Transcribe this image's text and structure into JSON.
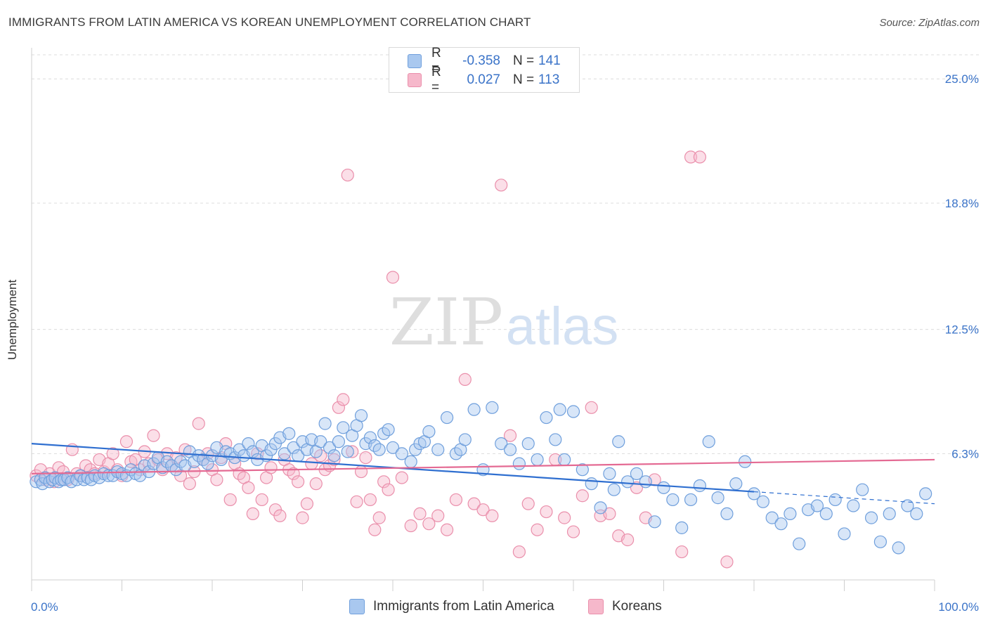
{
  "title": "IMMIGRANTS FROM LATIN AMERICA VS KOREAN UNEMPLOYMENT CORRELATION CHART",
  "source": "Source: ZipAtlas.com",
  "watermark": {
    "zip": "ZIP",
    "atlas": "atlas"
  },
  "colors": {
    "blue_fill": "#a9c8ef",
    "blue_stroke": "#6f9fdc",
    "blue_line": "#2f6fd0",
    "pink_fill": "#f6b8cb",
    "pink_stroke": "#ea8fab",
    "pink_line": "#e46a93",
    "axis_text": "#3a73c8",
    "grid": "#dcdcdc"
  },
  "legend_top": [
    {
      "r_label": "R =",
      "r_value": "-0.358",
      "n_label": "N =",
      "n_value": "141",
      "swatch": "#a9c8ef",
      "swatch_border": "#6f9fdc"
    },
    {
      "r_label": "R =",
      "r_value": "0.027",
      "n_label": "N =",
      "n_value": "113",
      "swatch": "#f6b8cb",
      "swatch_border": "#ea8fab"
    }
  ],
  "legend_bottom": [
    {
      "label": "Immigrants from Latin America",
      "swatch": "#a9c8ef",
      "swatch_border": "#6f9fdc"
    },
    {
      "label": "Koreans",
      "swatch": "#f6b8cb",
      "swatch_border": "#ea8fab"
    }
  ],
  "chart_data": {
    "type": "scatter",
    "title": "IMMIGRANTS FROM LATIN AMERICA VS KOREAN UNEMPLOYMENT CORRELATION CHART",
    "xlabel": "",
    "ylabel": "Unemployment",
    "xlim": [
      0,
      100
    ],
    "ylim": [
      0,
      26.2
    ],
    "x_tick_labels": [
      "0.0%",
      "100.0%"
    ],
    "y_ticks": [
      6.3,
      12.5,
      18.8,
      25.0
    ],
    "y_tick_labels": [
      "6.3%",
      "12.5%",
      "18.8%",
      "25.0%"
    ],
    "grid": "horizontal dashed",
    "legend_position": "top-center",
    "series": [
      {
        "name": "Immigrants from Latin America",
        "r": -0.358,
        "n": 141,
        "trend": {
          "x0": 0,
          "y0": 6.8,
          "x1": 80,
          "y1": 4.4,
          "dashed_to_x": 100,
          "dashed_to_y": 3.8
        },
        "points": [
          [
            0.5,
            4.9
          ],
          [
            1,
            5.0
          ],
          [
            1.2,
            4.8
          ],
          [
            1.5,
            5.1
          ],
          [
            2,
            4.9
          ],
          [
            2.3,
            5.0
          ],
          [
            2.6,
            5.1
          ],
          [
            3,
            4.9
          ],
          [
            3.3,
            5.0
          ],
          [
            3.6,
            5.0
          ],
          [
            4,
            5.1
          ],
          [
            4.4,
            4.9
          ],
          [
            5,
            5.0
          ],
          [
            5.4,
            5.2
          ],
          [
            5.8,
            5.0
          ],
          [
            6.2,
            5.1
          ],
          [
            6.6,
            5.0
          ],
          [
            7,
            5.2
          ],
          [
            7.5,
            5.1
          ],
          [
            8,
            5.3
          ],
          [
            8.5,
            5.2
          ],
          [
            9,
            5.2
          ],
          [
            9.5,
            5.4
          ],
          [
            10,
            5.3
          ],
          [
            10.5,
            5.2
          ],
          [
            11,
            5.5
          ],
          [
            11.5,
            5.3
          ],
          [
            12,
            5.2
          ],
          [
            12.5,
            5.7
          ],
          [
            13,
            5.4
          ],
          [
            13.5,
            5.8
          ],
          [
            14,
            6.1
          ],
          [
            14.5,
            5.6
          ],
          [
            15,
            5.9
          ],
          [
            15.5,
            5.7
          ],
          [
            16,
            5.5
          ],
          [
            16.5,
            5.9
          ],
          [
            17,
            5.7
          ],
          [
            17.5,
            6.4
          ],
          [
            18,
            5.9
          ],
          [
            18.5,
            6.2
          ],
          [
            19,
            6.0
          ],
          [
            19.5,
            5.8
          ],
          [
            20,
            6.2
          ],
          [
            20.5,
            6.6
          ],
          [
            21,
            6.0
          ],
          [
            21.5,
            6.4
          ],
          [
            22,
            6.3
          ],
          [
            22.5,
            6.1
          ],
          [
            23,
            6.5
          ],
          [
            23.5,
            6.2
          ],
          [
            24,
            6.8
          ],
          [
            24.5,
            6.4
          ],
          [
            25,
            6.0
          ],
          [
            25.5,
            6.7
          ],
          [
            26,
            6.2
          ],
          [
            26.5,
            6.5
          ],
          [
            27,
            6.8
          ],
          [
            27.5,
            7.1
          ],
          [
            28,
            6.3
          ],
          [
            28.5,
            7.3
          ],
          [
            29,
            6.6
          ],
          [
            29.5,
            6.2
          ],
          [
            30,
            6.9
          ],
          [
            30.5,
            6.5
          ],
          [
            31,
            7.0
          ],
          [
            31.5,
            6.4
          ],
          [
            32,
            6.9
          ],
          [
            32.5,
            7.8
          ],
          [
            33,
            6.6
          ],
          [
            33.5,
            6.2
          ],
          [
            34,
            6.9
          ],
          [
            34.5,
            7.6
          ],
          [
            35,
            6.4
          ],
          [
            35.5,
            7.2
          ],
          [
            36,
            7.7
          ],
          [
            36.5,
            8.2
          ],
          [
            37,
            6.8
          ],
          [
            37.5,
            7.1
          ],
          [
            38,
            6.7
          ],
          [
            38.5,
            6.5
          ],
          [
            39,
            7.3
          ],
          [
            39.5,
            7.5
          ],
          [
            40,
            6.6
          ],
          [
            41,
            6.3
          ],
          [
            42,
            5.9
          ],
          [
            42.5,
            6.5
          ],
          [
            43,
            6.8
          ],
          [
            43.5,
            6.9
          ],
          [
            44,
            7.4
          ],
          [
            45,
            6.5
          ],
          [
            46,
            8.1
          ],
          [
            47,
            6.3
          ],
          [
            47.5,
            6.5
          ],
          [
            48,
            7.0
          ],
          [
            49,
            8.5
          ],
          [
            50,
            5.5
          ],
          [
            51,
            8.6
          ],
          [
            52,
            6.8
          ],
          [
            53,
            6.5
          ],
          [
            54,
            5.8
          ],
          [
            55,
            6.8
          ],
          [
            56,
            6.0
          ],
          [
            57,
            8.1
          ],
          [
            58,
            7.0
          ],
          [
            58.5,
            8.5
          ],
          [
            59,
            6.0
          ],
          [
            60,
            8.4
          ],
          [
            61,
            5.5
          ],
          [
            62,
            4.8
          ],
          [
            63,
            3.6
          ],
          [
            64,
            5.3
          ],
          [
            64.5,
            4.5
          ],
          [
            65,
            6.9
          ],
          [
            66,
            4.9
          ],
          [
            67,
            5.3
          ],
          [
            68,
            4.9
          ],
          [
            69,
            2.9
          ],
          [
            70,
            4.6
          ],
          [
            71,
            4.0
          ],
          [
            72,
            2.6
          ],
          [
            73,
            4.0
          ],
          [
            74,
            4.7
          ],
          [
            75,
            6.9
          ],
          [
            76,
            4.1
          ],
          [
            77,
            3.3
          ],
          [
            78,
            4.8
          ],
          [
            79,
            5.9
          ],
          [
            80,
            4.3
          ],
          [
            81,
            3.9
          ],
          [
            82,
            3.1
          ],
          [
            83,
            2.8
          ],
          [
            84,
            3.3
          ],
          [
            85,
            1.8
          ],
          [
            86,
            3.5
          ],
          [
            87,
            3.7
          ],
          [
            88,
            3.3
          ],
          [
            89,
            4.0
          ],
          [
            90,
            2.3
          ],
          [
            91,
            3.7
          ],
          [
            92,
            4.5
          ],
          [
            93,
            3.1
          ],
          [
            94,
            1.9
          ],
          [
            95,
            3.3
          ],
          [
            96,
            1.6
          ],
          [
            97,
            3.7
          ],
          [
            98,
            3.3
          ],
          [
            99,
            4.3
          ]
        ]
      },
      {
        "name": "Koreans",
        "r": 0.027,
        "n": 113,
        "trend": {
          "x0": 0,
          "y0": 5.3,
          "x1": 100,
          "y1": 6.0
        },
        "points": [
          [
            0.5,
            5.2
          ],
          [
            1,
            5.5
          ],
          [
            1.5,
            5.0
          ],
          [
            2,
            5.3
          ],
          [
            2.5,
            4.9
          ],
          [
            3,
            5.6
          ],
          [
            3.5,
            5.4
          ],
          [
            4,
            5.0
          ],
          [
            4.5,
            6.5
          ],
          [
            5,
            5.3
          ],
          [
            5.5,
            5.2
          ],
          [
            6,
            5.7
          ],
          [
            6.5,
            5.5
          ],
          [
            7,
            5.3
          ],
          [
            7.5,
            6.0
          ],
          [
            8,
            5.4
          ],
          [
            8.5,
            5.8
          ],
          [
            9,
            6.3
          ],
          [
            9.5,
            5.5
          ],
          [
            10,
            5.2
          ],
          [
            10.5,
            6.9
          ],
          [
            11,
            5.9
          ],
          [
            11.5,
            6.0
          ],
          [
            12,
            5.5
          ],
          [
            12.5,
            6.4
          ],
          [
            13,
            5.8
          ],
          [
            13.5,
            7.2
          ],
          [
            14,
            6.0
          ],
          [
            14.5,
            5.5
          ],
          [
            15,
            6.3
          ],
          [
            15.5,
            5.7
          ],
          [
            16,
            6.1
          ],
          [
            16.5,
            5.2
          ],
          [
            17,
            6.5
          ],
          [
            17.5,
            4.8
          ],
          [
            18,
            5.4
          ],
          [
            18.5,
            7.8
          ],
          [
            19,
            6.0
          ],
          [
            19.5,
            6.3
          ],
          [
            20,
            5.5
          ],
          [
            20.5,
            5.0
          ],
          [
            21,
            6.1
          ],
          [
            21.5,
            6.8
          ],
          [
            22,
            4.0
          ],
          [
            22.5,
            5.8
          ],
          [
            23,
            5.3
          ],
          [
            23.5,
            5.1
          ],
          [
            24,
            4.6
          ],
          [
            24.5,
            3.3
          ],
          [
            25,
            6.3
          ],
          [
            25.5,
            4.0
          ],
          [
            26,
            5.1
          ],
          [
            26.5,
            5.6
          ],
          [
            27,
            3.5
          ],
          [
            27.5,
            3.2
          ],
          [
            28,
            6.0
          ],
          [
            28.5,
            5.5
          ],
          [
            29,
            5.3
          ],
          [
            29.5,
            4.9
          ],
          [
            30,
            3.1
          ],
          [
            30.5,
            3.8
          ],
          [
            31,
            5.8
          ],
          [
            31.5,
            4.8
          ],
          [
            32,
            6.2
          ],
          [
            32.5,
            5.5
          ],
          [
            33,
            5.7
          ],
          [
            33.5,
            6.0
          ],
          [
            34,
            8.6
          ],
          [
            34.5,
            9.0
          ],
          [
            35,
            20.2
          ],
          [
            35.5,
            6.4
          ],
          [
            36,
            3.9
          ],
          [
            36.5,
            5.4
          ],
          [
            37,
            6.1
          ],
          [
            37.5,
            4.0
          ],
          [
            38,
            2.5
          ],
          [
            38.5,
            3.1
          ],
          [
            39,
            4.9
          ],
          [
            39.5,
            4.5
          ],
          [
            40,
            15.1
          ],
          [
            41,
            5.1
          ],
          [
            42,
            2.7
          ],
          [
            43,
            3.3
          ],
          [
            44,
            2.8
          ],
          [
            45,
            3.2
          ],
          [
            46,
            2.5
          ],
          [
            47,
            4.0
          ],
          [
            48,
            10.0
          ],
          [
            49,
            3.8
          ],
          [
            50,
            3.5
          ],
          [
            51,
            3.2
          ],
          [
            52,
            19.7
          ],
          [
            53,
            7.2
          ],
          [
            54,
            1.4
          ],
          [
            55,
            3.8
          ],
          [
            56,
            2.5
          ],
          [
            57,
            3.4
          ],
          [
            58,
            6.0
          ],
          [
            59,
            3.1
          ],
          [
            60,
            2.4
          ],
          [
            61,
            4.2
          ],
          [
            62,
            8.6
          ],
          [
            63,
            3.2
          ],
          [
            64,
            3.3
          ],
          [
            65,
            2.2
          ],
          [
            66,
            2.0
          ],
          [
            67,
            4.6
          ],
          [
            68,
            3.1
          ],
          [
            69,
            5.0
          ],
          [
            72,
            1.4
          ],
          [
            73,
            21.1
          ],
          [
            74,
            21.1
          ],
          [
            77,
            0.9
          ]
        ]
      }
    ]
  }
}
